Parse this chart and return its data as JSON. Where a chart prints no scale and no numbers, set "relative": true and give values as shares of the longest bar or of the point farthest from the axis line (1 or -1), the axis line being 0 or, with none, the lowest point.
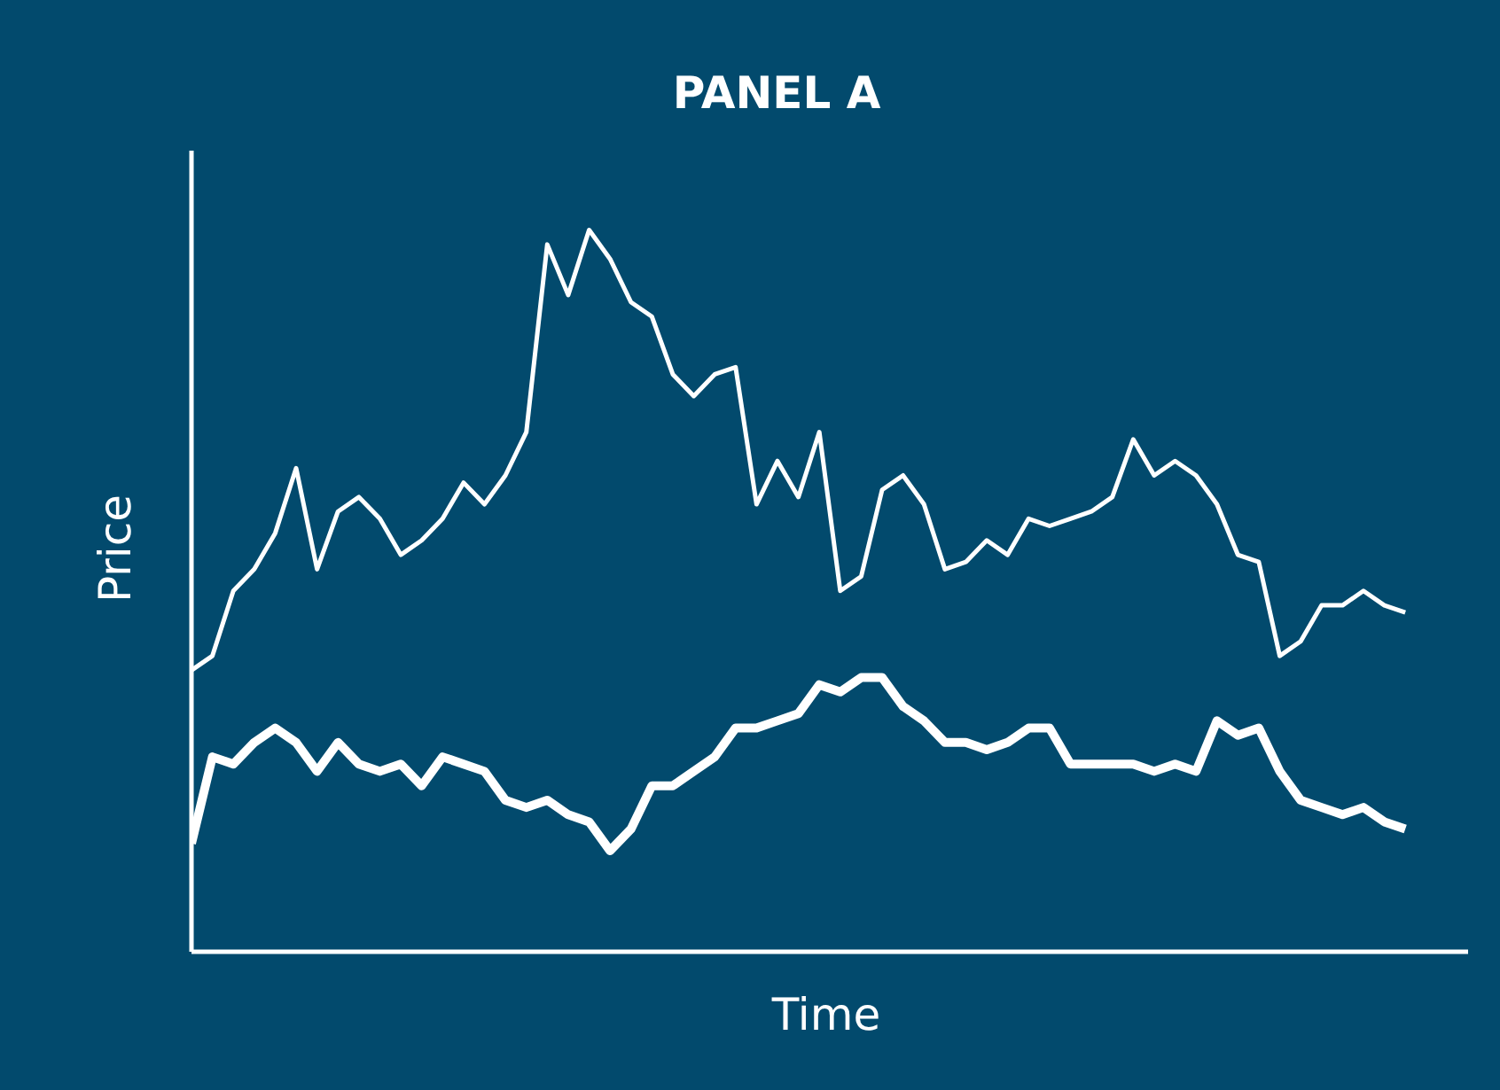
{
  "chart_data": {
    "type": "line",
    "title": "PANEL A",
    "xlabel": "Time",
    "ylabel": "Price",
    "relative": true,
    "grid": false,
    "legend": false,
    "marker": "none",
    "line_style": "solid",
    "categories": [
      null,
      null,
      null,
      null,
      null,
      null,
      null,
      null,
      null,
      null,
      null,
      null,
      null,
      null,
      null,
      null,
      null,
      null,
      null,
      null,
      null,
      null,
      null,
      null,
      null,
      null,
      null,
      null,
      null,
      null,
      null,
      null,
      null,
      null,
      null,
      null,
      null,
      null,
      null,
      null,
      null,
      null,
      null,
      null,
      null,
      null,
      null,
      null,
      null,
      null,
      null,
      null,
      null,
      null,
      null,
      null,
      null,
      null,
      null
    ],
    "series": [
      {
        "color": "#ffffff",
        "values": [
          0.39,
          0.41,
          0.5,
          0.53,
          0.58,
          0.67,
          0.53,
          0.61,
          0.63,
          0.6,
          0.55,
          0.57,
          0.6,
          0.65,
          0.62,
          0.66,
          0.72,
          0.98,
          0.91,
          1.0,
          0.96,
          0.9,
          0.88,
          0.8,
          0.77,
          0.8,
          0.81,
          0.62,
          0.68,
          0.63,
          0.72,
          0.5,
          0.52,
          0.64,
          0.66,
          0.62,
          0.53,
          0.54,
          0.57,
          0.55,
          0.6,
          0.59,
          0.6,
          0.61,
          0.63,
          0.71,
          0.66,
          0.68,
          0.66,
          0.62,
          0.55,
          0.54,
          0.41,
          0.43,
          0.48,
          0.48,
          0.5,
          0.48,
          0.47
        ]
      },
      {
        "color": "#ffffff",
        "values": [
          0.15,
          0.27,
          0.26,
          0.29,
          0.31,
          0.29,
          0.25,
          0.29,
          0.26,
          0.25,
          0.26,
          0.23,
          0.27,
          0.26,
          0.25,
          0.21,
          0.2,
          0.21,
          0.19,
          0.18,
          0.14,
          0.17,
          0.23,
          0.23,
          0.25,
          0.27,
          0.31,
          0.31,
          0.32,
          0.33,
          0.37,
          0.36,
          0.38,
          0.38,
          0.34,
          0.32,
          0.29,
          0.29,
          0.28,
          0.29,
          0.31,
          0.31,
          0.26,
          0.26,
          0.26,
          0.26,
          0.25,
          0.26,
          0.25,
          0.32,
          0.3,
          0.31,
          0.25,
          0.21,
          0.2,
          0.19,
          0.2,
          0.18,
          0.17
        ]
      }
    ]
  }
}
